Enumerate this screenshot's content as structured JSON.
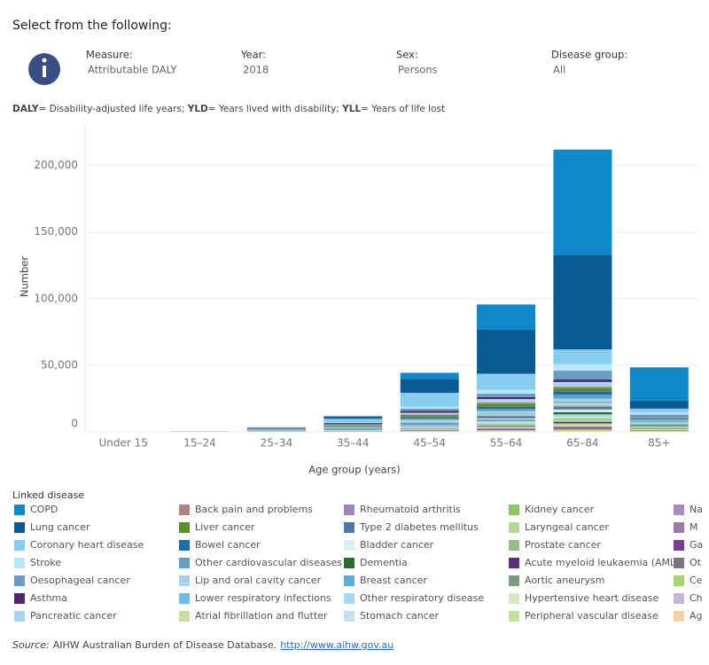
{
  "header": {
    "title": "Select from the following:"
  },
  "filters": [
    {
      "label": "Measure:",
      "value": "Attributable DALY"
    },
    {
      "label": "Year:",
      "value": "2018"
    },
    {
      "label": "Sex:",
      "value": "Persons"
    },
    {
      "label": "Disease group:",
      "value": "All"
    }
  ],
  "note": [
    [
      "DALY",
      "= Disability-adjusted life years; "
    ],
    [
      "YLD",
      "= Years lived with disability; "
    ],
    [
      "YLL",
      "= Years of life lost"
    ]
  ],
  "chart_data": {
    "type": "stacked_bar",
    "x_label": "Age group (years)",
    "y_label": "Number",
    "legend_title": "Linked disease",
    "categories": [
      "Under 15",
      "15–24",
      "25–34",
      "35–44",
      "45–54",
      "55–64",
      "65–84",
      "85+"
    ],
    "ylim": [
      0,
      231000
    ],
    "yticks": [
      0,
      {
        "value": 50000,
        "label": "50,000"
      },
      {
        "value": 100000,
        "label": "100,000"
      },
      {
        "value": 150000,
        "label": "150,000"
      },
      {
        "value": 200000,
        "label": "200,000"
      }
    ],
    "grid": true,
    "series": [
      {
        "name": "COPD",
        "color": "#0e88c9",
        "values": [
          0,
          0,
          100,
          500,
          4500,
          19000,
          79000,
          25000
        ]
      },
      {
        "name": "Lung cancer",
        "color": "#0b5a94",
        "values": [
          0,
          0,
          300,
          1500,
          10500,
          33000,
          71000,
          6000
        ]
      },
      {
        "name": "Coronary heart disease",
        "color": "#86cdef",
        "values": [
          0,
          0,
          500,
          2500,
          10500,
          12000,
          11000,
          3000
        ]
      },
      {
        "name": "Stroke",
        "color": "#b8e8f8",
        "values": [
          0,
          0,
          100,
          400,
          1500,
          3000,
          5000,
          1500
        ]
      },
      {
        "name": "Oesophageal cancer",
        "color": "#6a9bc3",
        "values": [
          0,
          0,
          50,
          300,
          1500,
          2500,
          6500,
          800
        ]
      },
      {
        "name": "Asthma",
        "color": "#4b2a6b",
        "values": [
          0,
          100,
          500,
          1000,
          1500,
          1500,
          2000,
          500
        ]
      },
      {
        "name": "Pancreatic cancer",
        "color": "#a8d4f0",
        "values": [
          0,
          0,
          100,
          400,
          1200,
          2500,
          3500,
          600
        ]
      },
      {
        "name": "Back pain and problems",
        "color": "#a9877a",
        "values": [
          0,
          50,
          300,
          500,
          800,
          1000,
          1000,
          300
        ]
      },
      {
        "name": "Liver cancer",
        "color": "#5f8f2d",
        "values": [
          0,
          0,
          100,
          500,
          1500,
          2500,
          2500,
          300
        ]
      },
      {
        "name": "Bowel cancer",
        "color": "#1a6ea8",
        "values": [
          0,
          0,
          100,
          300,
          800,
          1500,
          2500,
          600
        ]
      },
      {
        "name": "Other cardiovascular diseases",
        "color": "#5fa0c8",
        "values": [
          0,
          0,
          200,
          500,
          1000,
          1500,
          3000,
          1500
        ]
      },
      {
        "name": "Lip and oral cavity cancer",
        "color": "#a6d2ee",
        "values": [
          0,
          0,
          100,
          400,
          1500,
          2000,
          2000,
          200
        ]
      },
      {
        "name": "Lower respiratory infections",
        "color": "#6cbbe8",
        "values": [
          0,
          0,
          50,
          100,
          300,
          600,
          1500,
          1200
        ]
      },
      {
        "name": "Atrial fibrillation and flutter",
        "color": "#c6dea6",
        "values": [
          0,
          0,
          50,
          100,
          300,
          800,
          1800,
          800
        ]
      },
      {
        "name": "Rheumatoid arthritis",
        "color": "#9b86b6",
        "values": [
          0,
          0,
          100,
          200,
          400,
          600,
          800,
          200
        ]
      },
      {
        "name": "Type 2 diabetes mellitus",
        "color": "#4a78a8",
        "values": [
          0,
          0,
          200,
          500,
          1000,
          1500,
          2000,
          400
        ]
      },
      {
        "name": "Bladder cancer",
        "color": "#d8f0f8",
        "values": [
          0,
          0,
          20,
          100,
          400,
          1000,
          2000,
          500
        ]
      },
      {
        "name": "Dementia",
        "color": "#2e6a2e",
        "values": [
          0,
          0,
          0,
          50,
          200,
          500,
          1500,
          800
        ]
      },
      {
        "name": "Breast cancer",
        "color": "#5aaed8",
        "values": [
          0,
          0,
          200,
          600,
          800,
          700,
          500,
          100
        ]
      },
      {
        "name": "Other respiratory disease",
        "color": "#a6d8f0",
        "values": [
          0,
          0,
          100,
          200,
          500,
          800,
          1500,
          600
        ]
      },
      {
        "name": "Stomach cancer",
        "color": "#c8e0ee",
        "values": [
          0,
          0,
          50,
          200,
          500,
          900,
          1200,
          200
        ]
      },
      {
        "name": "Kidney cancer",
        "color": "#8cc664",
        "values": [
          0,
          0,
          50,
          200,
          400,
          700,
          1000,
          200
        ]
      },
      {
        "name": "Laryngeal cancer",
        "color": "#b2d89a",
        "values": [
          0,
          0,
          20,
          100,
          400,
          800,
          900,
          100
        ]
      },
      {
        "name": "Prostate cancer",
        "color": "#9cbb8a",
        "values": [
          0,
          0,
          0,
          0,
          100,
          300,
          700,
          300
        ]
      },
      {
        "name": "Acute myeloid leukaemia (AML)",
        "color": "#5a2e7a",
        "values": [
          0,
          0,
          50,
          100,
          300,
          500,
          1000,
          200
        ]
      },
      {
        "name": "Aortic aneurysm",
        "color": "#7a9c7e",
        "values": [
          0,
          0,
          0,
          20,
          100,
          300,
          800,
          400
        ]
      },
      {
        "name": "Hypertensive heart disease",
        "color": "#d4e8c0",
        "values": [
          0,
          0,
          20,
          100,
          200,
          400,
          700,
          400
        ]
      },
      {
        "name": "Peripheral vascular disease",
        "color": "#c2e0a0",
        "values": [
          0,
          0,
          10,
          50,
          200,
          400,
          800,
          300
        ]
      },
      {
        "name": "Na",
        "color": "#a68cc0",
        "values": [
          0,
          0,
          20,
          50,
          200,
          400,
          600,
          200
        ]
      },
      {
        "name": "M",
        "color": "#9c7aa8",
        "values": [
          0,
          0,
          20,
          50,
          200,
          400,
          600,
          200
        ]
      },
      {
        "name": "Ga",
        "color": "#7b3c94",
        "values": [
          0,
          0,
          20,
          50,
          200,
          400,
          600,
          200
        ]
      },
      {
        "name": "Ot",
        "color": "#7f7082",
        "values": [
          0,
          0,
          20,
          50,
          200,
          400,
          600,
          200
        ]
      },
      {
        "name": "Ce",
        "color": "#a6d472",
        "values": [
          0,
          0,
          20,
          50,
          200,
          400,
          600,
          200
        ]
      },
      {
        "name": "Ch",
        "color": "#c8b4d8",
        "values": [
          0,
          0,
          20,
          50,
          200,
          400,
          600,
          200
        ]
      },
      {
        "name": "Ag",
        "color": "#f2d2a2",
        "values": [
          0,
          0,
          20,
          50,
          200,
          400,
          600,
          200
        ]
      }
    ]
  },
  "source": {
    "label": "Source:",
    "text": "AIHW Australian Burden of Disease Database.",
    "url": "http://www.aihw.gov.au"
  }
}
